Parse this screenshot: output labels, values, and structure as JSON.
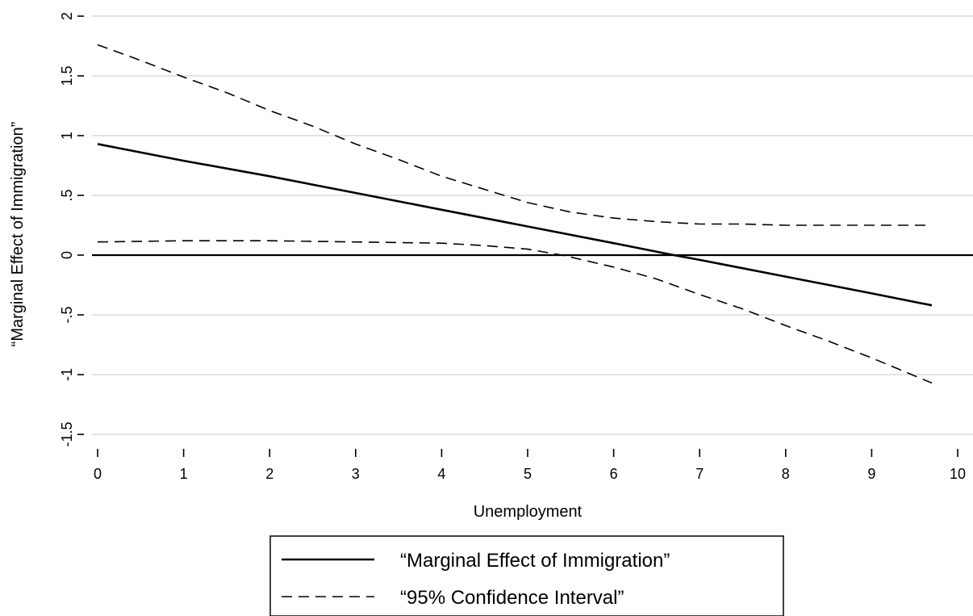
{
  "chart_data": {
    "type": "line",
    "title": "",
    "xlabel": "Unemployment",
    "ylabel": "“Marginal Effect of Immigration”",
    "xlim": [
      0,
      10
    ],
    "ylim": [
      -1.5,
      2
    ],
    "x_ticks": [
      0,
      1,
      2,
      3,
      4,
      5,
      6,
      7,
      8,
      9,
      10
    ],
    "x_tick_labels": [
      "0",
      "1",
      "2",
      "3",
      "4",
      "5",
      "6",
      "7",
      "8",
      "9",
      "10"
    ],
    "y_ticks": [
      -1.5,
      -1,
      -0.5,
      0,
      0.5,
      1,
      1.5,
      2
    ],
    "y_tick_labels": [
      "-1.5",
      "-1",
      "-.5",
      "0",
      ".5",
      "1",
      "1.5",
      "2"
    ],
    "grid": "horizontal",
    "reference_line_y": 0,
    "legend_position": "bottom",
    "series": [
      {
        "name": "“Marginal Effect of Immigration”",
        "style": "solid",
        "color": "#000000",
        "x": [
          0,
          1,
          2,
          3,
          4,
          5,
          6,
          6.7,
          7,
          8,
          9,
          9.7
        ],
        "y": [
          0.93,
          0.79,
          0.66,
          0.52,
          0.38,
          0.24,
          0.1,
          0.0,
          -0.04,
          -0.18,
          -0.32,
          -0.42
        ]
      },
      {
        "name": "“95% Confidence Interval”",
        "style": "dashed",
        "color": "#000000",
        "x": [
          0,
          0.5,
          1,
          1.5,
          2,
          2.5,
          3,
          3.5,
          4,
          4.5,
          5,
          5.5,
          6,
          6.5,
          7,
          7.5,
          8,
          8.5,
          9,
          9.7
        ],
        "y": [
          1.76,
          1.63,
          1.49,
          1.36,
          1.21,
          1.08,
          0.93,
          0.8,
          0.66,
          0.55,
          0.44,
          0.36,
          0.31,
          0.28,
          0.26,
          0.26,
          0.25,
          0.25,
          0.25,
          0.25
        ]
      },
      {
        "name": "",
        "style": "dashed",
        "color": "#000000",
        "x": [
          0,
          1,
          2,
          3,
          4,
          4.5,
          5,
          5.4,
          6,
          6.5,
          7,
          7.5,
          8,
          8.5,
          9,
          9.7
        ],
        "y": [
          0.11,
          0.12,
          0.12,
          0.11,
          0.1,
          0.08,
          0.05,
          0.0,
          -0.1,
          -0.2,
          -0.33,
          -0.45,
          -0.59,
          -0.72,
          -0.86,
          -1.07
        ]
      }
    ]
  }
}
